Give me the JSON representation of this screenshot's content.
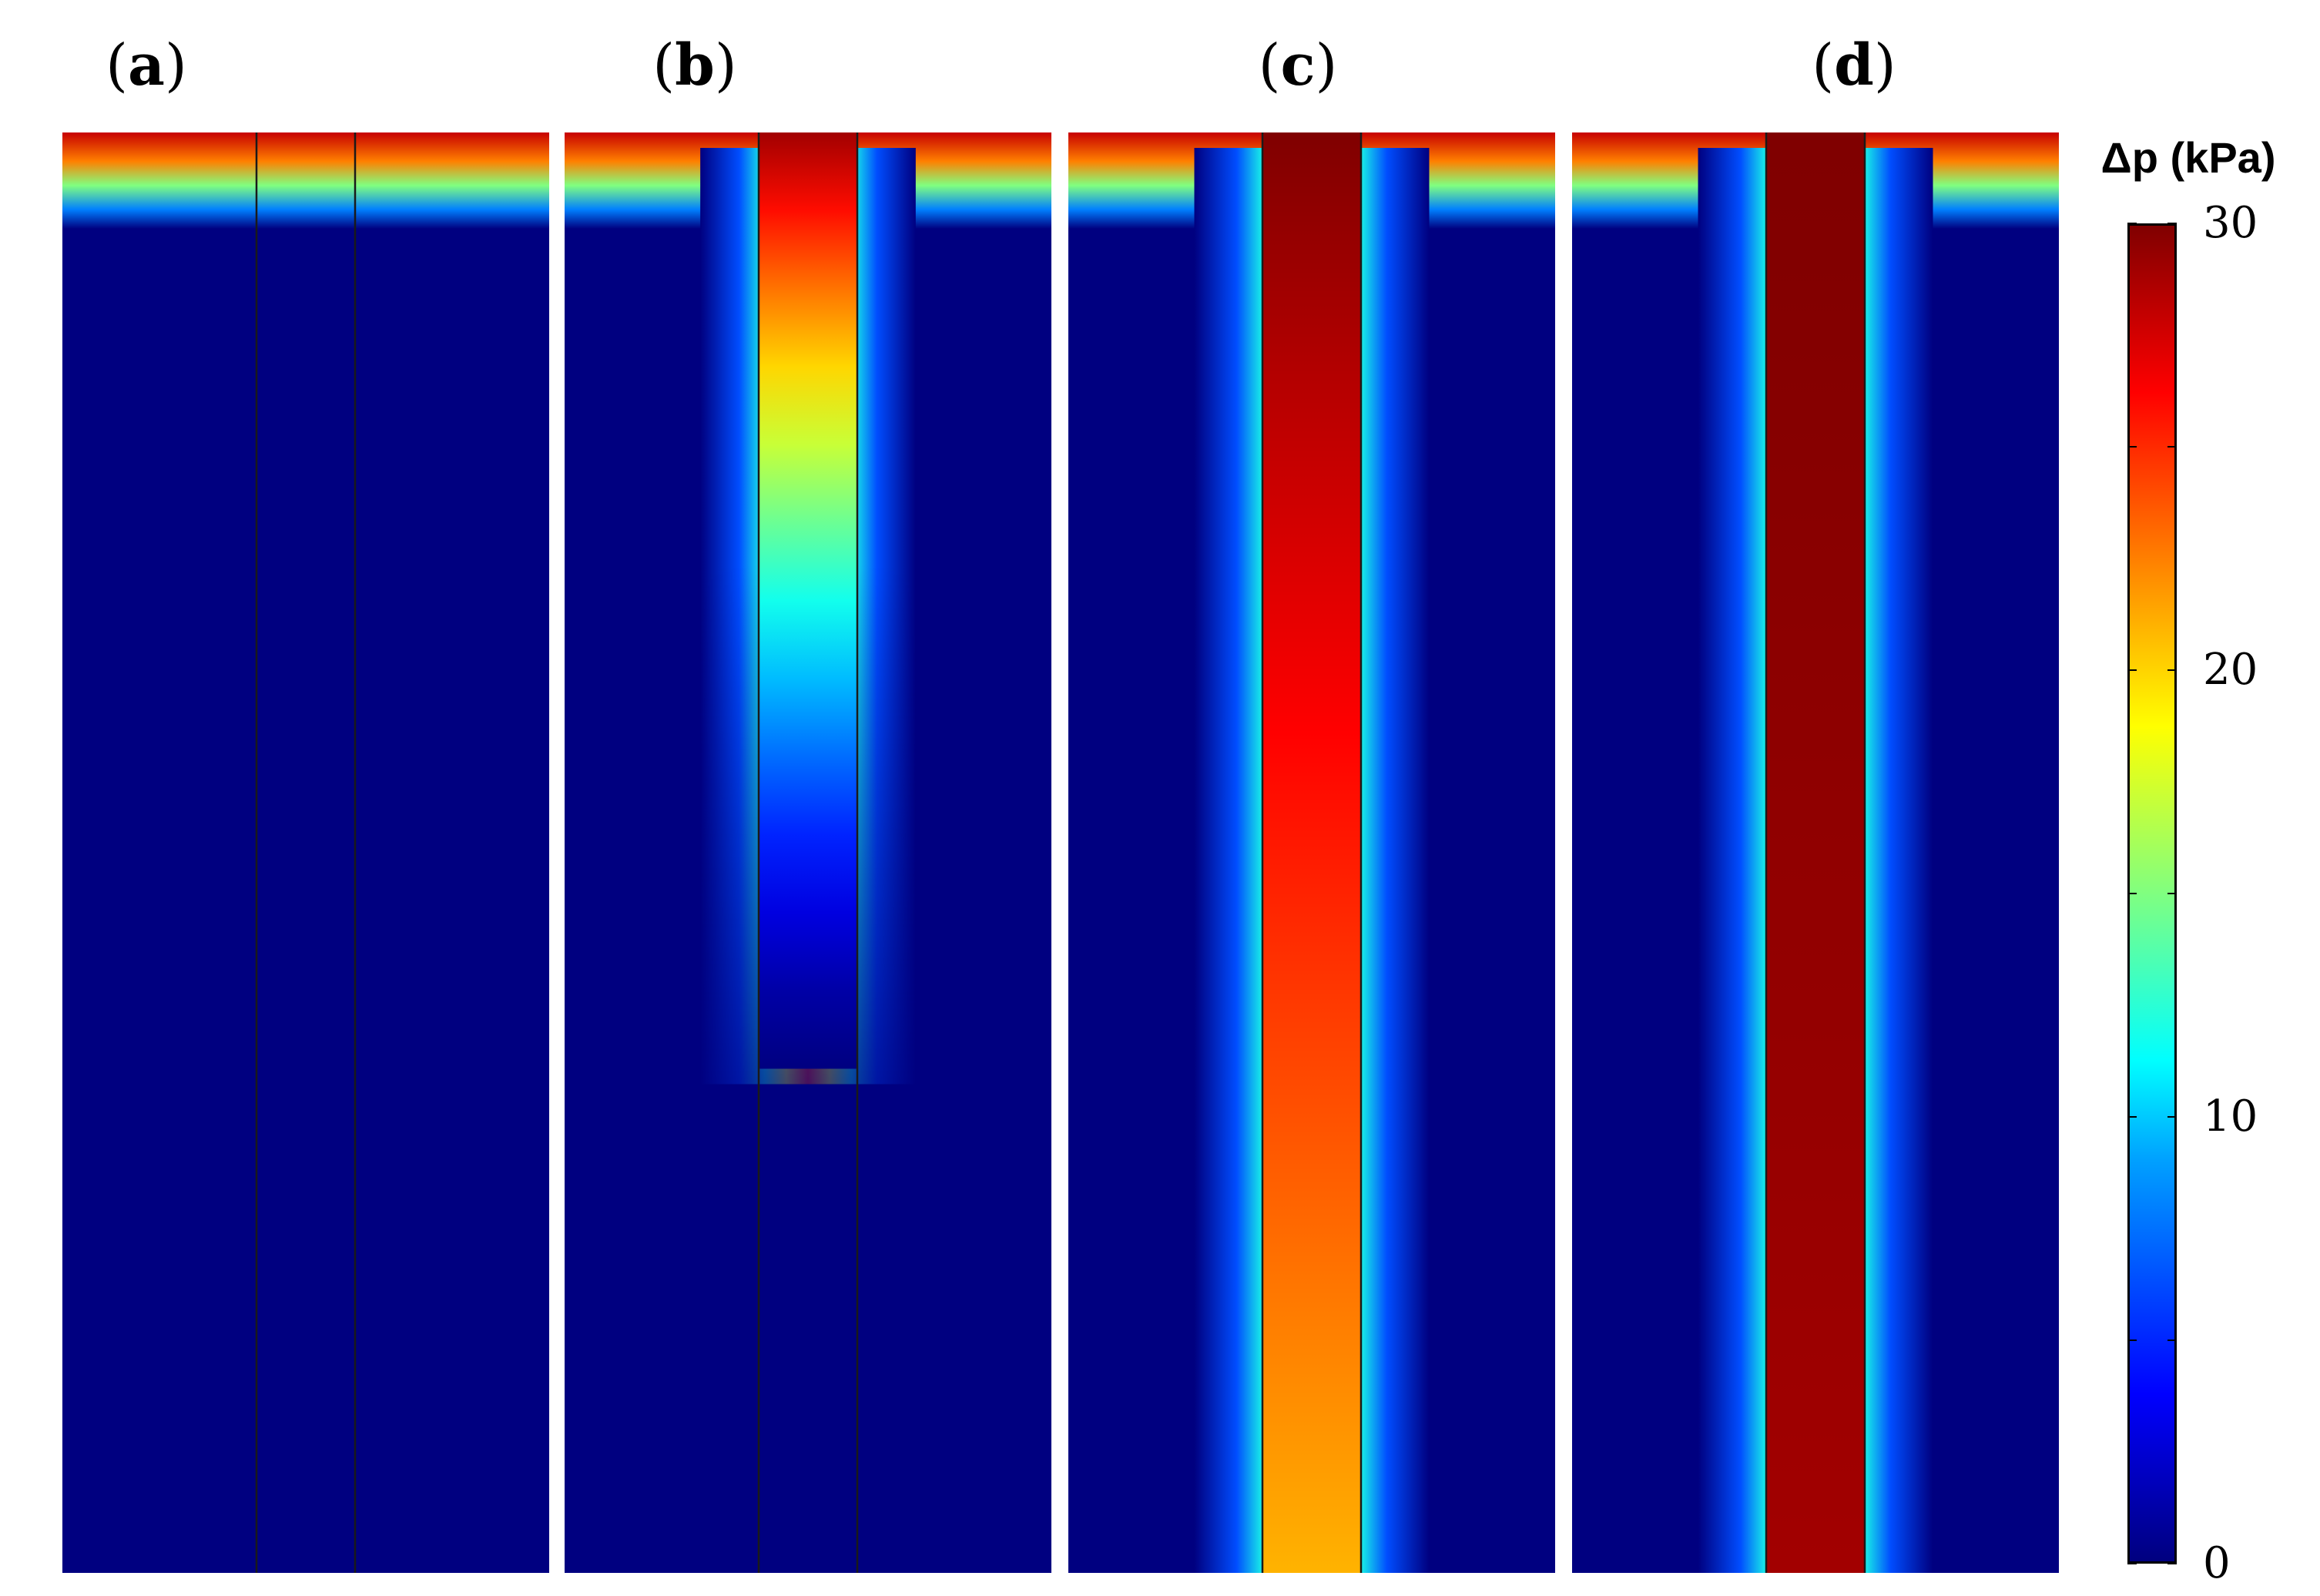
{
  "chart_data": {
    "type": "heatmap",
    "title": "",
    "colorbar": {
      "label": "Δp (kPa)",
      "range": [
        0,
        30
      ],
      "tick_labels": [
        "0",
        "10",
        "20",
        "30"
      ],
      "colormap": "jet"
    },
    "panels": [
      {
        "label": "(a)",
        "letter": "a",
        "penetration_depth_fraction": 0.06,
        "shaft_value_top": 30,
        "shaft_value_bottom": 0,
        "halo_width_fraction": 0.0
      },
      {
        "label": "(b)",
        "letter": "b",
        "penetration_depth_fraction": 0.65,
        "shaft_value_top": 29,
        "shaft_value_bottom": 0,
        "halo_width_fraction": 0.12
      },
      {
        "label": "(c)",
        "letter": "c",
        "penetration_depth_fraction": 1.0,
        "shaft_value_top": 30,
        "shaft_value_bottom": 21,
        "halo_width_fraction": 0.14
      },
      {
        "label": "(d)",
        "letter": "d",
        "penetration_depth_fraction": 1.0,
        "shaft_value_top": 30,
        "shaft_value_bottom": 29,
        "halo_width_fraction": 0.14
      }
    ]
  }
}
